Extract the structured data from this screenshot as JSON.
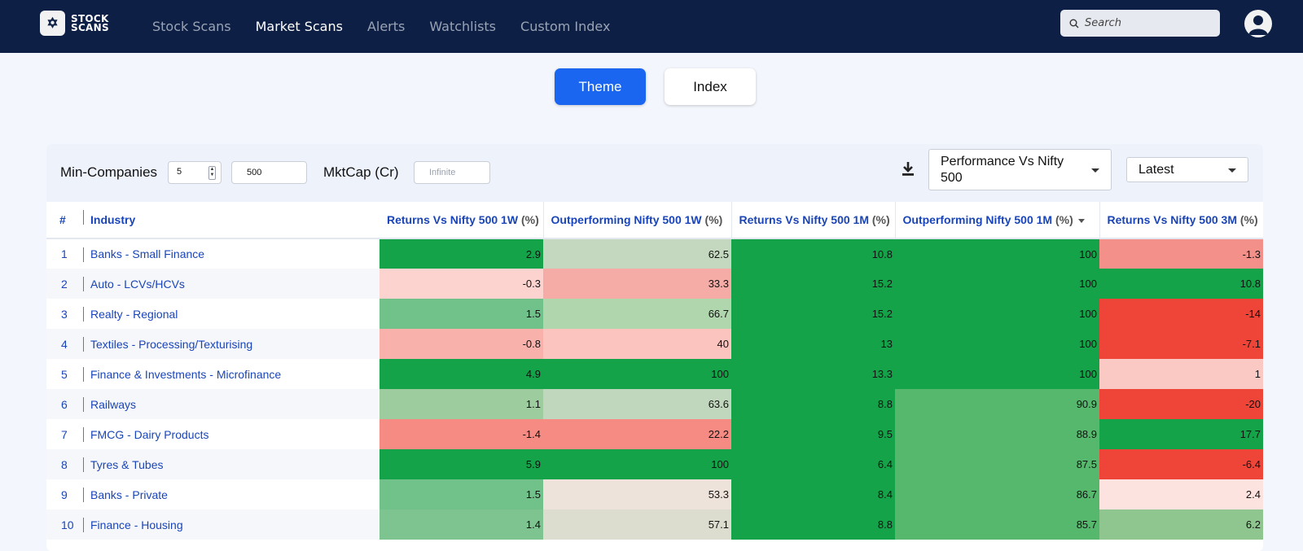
{
  "app": {
    "logo_mark": "✡",
    "logo_line1": "STOCK",
    "logo_line2": "SCANS"
  },
  "nav": {
    "items": [
      {
        "label": "Stock Scans",
        "active": false
      },
      {
        "label": "Market Scans",
        "active": true
      },
      {
        "label": "Alerts",
        "active": false
      },
      {
        "label": "Watchlists",
        "active": false
      },
      {
        "label": "Custom Index",
        "active": false
      }
    ],
    "search_placeholder": "Search"
  },
  "toggle": {
    "theme_label": "Theme",
    "index_label": "Index",
    "selected": "Theme"
  },
  "filters": {
    "min_companies_label": "Min-Companies",
    "min_companies_value": "5",
    "max_value": "500",
    "mktcap_label": "MktCap (Cr)",
    "mktcap_placeholder": "Infinite",
    "performance_select_line1": "Performance Vs Nifty",
    "performance_select_line2": "500",
    "period_select": "Latest"
  },
  "colors": {
    "nav_bg": "#0d1f44",
    "accent": "#1a66f0",
    "link": "#1a45b8"
  },
  "table": {
    "columns": [
      {
        "label": "#"
      },
      {
        "label": "Industry"
      },
      {
        "label": "Returns Vs Nifty 500 1W",
        "unit": "(%)"
      },
      {
        "label": "Outperforming Nifty 500 1W",
        "unit": "(%)"
      },
      {
        "label": "Returns Vs Nifty 500 1M",
        "unit": "(%)"
      },
      {
        "label": "Outperforming Nifty 500 1M",
        "unit": "(%)"
      },
      {
        "label": "Returns Vs Nifty 500 3M",
        "unit": "(%)"
      }
    ],
    "rows": [
      {
        "n": "1",
        "industry": "Banks - Small Finance",
        "c": [
          "2.9",
          "62.5",
          "10.8",
          "100",
          "-1.3"
        ],
        "bg": [
          "#15a34a",
          "#c3d8bf",
          "#15a34a",
          "#15a34a",
          "#f4908a"
        ]
      },
      {
        "n": "2",
        "industry": "Auto - LCVs/HCVs",
        "c": [
          "-0.3",
          "33.3",
          "15.2",
          "100",
          "10.8"
        ],
        "bg": [
          "#fdd3d0",
          "#f5aca6",
          "#15a34a",
          "#15a34a",
          "#15a34a"
        ]
      },
      {
        "n": "3",
        "industry": "Realty - Regional",
        "c": [
          "1.5",
          "66.7",
          "15.2",
          "100",
          "-14"
        ],
        "bg": [
          "#71c18b",
          "#b0d6ae",
          "#15a34a",
          "#15a34a",
          "#ef4538"
        ]
      },
      {
        "n": "4",
        "industry": "Textiles - Processing/Texturising",
        "c": [
          "-0.8",
          "40",
          "13",
          "100",
          "-7.1"
        ],
        "bg": [
          "#f8b2ab",
          "#fbc4bf",
          "#15a34a",
          "#15a34a",
          "#ef4538"
        ]
      },
      {
        "n": "5",
        "industry": "Finance & Investments - Microfinance",
        "c": [
          "4.9",
          "100",
          "13.3",
          "100",
          "1"
        ],
        "bg": [
          "#15a34a",
          "#15a34a",
          "#15a34a",
          "#15a34a",
          "#fbc9c4"
        ]
      },
      {
        "n": "6",
        "industry": "Railways",
        "c": [
          "1.1",
          "63.6",
          "8.8",
          "90.9",
          "-20"
        ],
        "bg": [
          "#9dcc9f",
          "#c1d7bd",
          "#15a34a",
          "#55b86c",
          "#ef4538"
        ]
      },
      {
        "n": "7",
        "industry": "FMCG - Dairy Products",
        "c": [
          "-1.4",
          "22.2",
          "9.5",
          "88.9",
          "17.7"
        ],
        "bg": [
          "#f58b83",
          "#f58b83",
          "#15a34a",
          "#55b86c",
          "#15a34a"
        ]
      },
      {
        "n": "8",
        "industry": "Tyres & Tubes",
        "c": [
          "5.9",
          "100",
          "6.4",
          "87.5",
          "-6.4"
        ],
        "bg": [
          "#15a34a",
          "#15a34a",
          "#15a34a",
          "#55b86c",
          "#ef4538"
        ]
      },
      {
        "n": "9",
        "industry": "Banks - Private",
        "c": [
          "1.5",
          "53.3",
          "8.4",
          "86.7",
          "2.4"
        ],
        "bg": [
          "#71c18b",
          "#eee3da",
          "#15a34a",
          "#55b86c",
          "#fde3e0"
        ]
      },
      {
        "n": "10",
        "industry": "Finance - Housing",
        "c": [
          "1.4",
          "57.1",
          "8.8",
          "85.7",
          "6.2"
        ],
        "bg": [
          "#7dc490",
          "#dcddcf",
          "#15a34a",
          "#55b86c",
          "#8fc68f"
        ]
      }
    ]
  }
}
